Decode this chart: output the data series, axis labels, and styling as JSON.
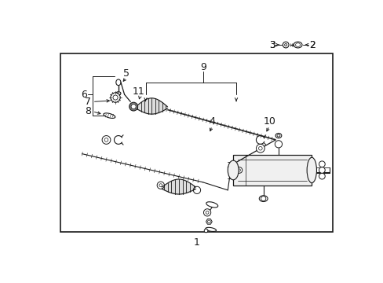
{
  "bg_color": "#ffffff",
  "border_color": "#1a1a1a",
  "line_color": "#1a1a1a",
  "fig_width": 4.89,
  "fig_height": 3.6,
  "dpi": 100,
  "border": [
    0.04,
    0.09,
    0.96,
    0.91
  ],
  "label_color": "#1a1a1a",
  "label_fs": 8.5
}
